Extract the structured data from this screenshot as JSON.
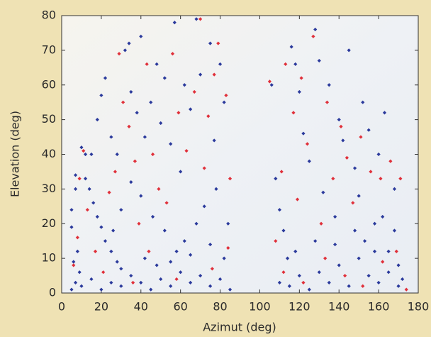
{
  "chart_data": {
    "type": "scatter",
    "xlabel": "Azimut (deg)",
    "ylabel": "Elevation (deg)",
    "xlim": [
      0,
      180
    ],
    "xticks": [
      0,
      20,
      40,
      60,
      80,
      100,
      120,
      140,
      160,
      180
    ],
    "ylim": [
      0,
      80
    ],
    "yticks": [
      0,
      10,
      20,
      30,
      40,
      50,
      60,
      70,
      80
    ],
    "series": [
      {
        "color": "#2b3a9c",
        "x": [
          5,
          7,
          9,
          6,
          8,
          5,
          5,
          7,
          7,
          10,
          12,
          15,
          12,
          14,
          16,
          18,
          20,
          22,
          25,
          28,
          30,
          10,
          15,
          20,
          25,
          30,
          35,
          40,
          45,
          50,
          55,
          60,
          65,
          70,
          75,
          80,
          85,
          18,
          20,
          22,
          25,
          28,
          32,
          34,
          35,
          38,
          40,
          42,
          45,
          48,
          50,
          52,
          55,
          57,
          60,
          62,
          65,
          68,
          70,
          75,
          77,
          80,
          82,
          78,
          72,
          68,
          62,
          58,
          52,
          46,
          40,
          35,
          30,
          26,
          42,
          48,
          55,
          65,
          75,
          82,
          84,
          106,
          108,
          110,
          112,
          114,
          116,
          118,
          120,
          122,
          125,
          128,
          130,
          132,
          135,
          138,
          140,
          142,
          145,
          148,
          150,
          152,
          155,
          158,
          160,
          163,
          165,
          168,
          170,
          172,
          110,
          115,
          120,
          125,
          130,
          135,
          140,
          145,
          150,
          155,
          160,
          165,
          170,
          118,
          128,
          138,
          148,
          158,
          162,
          168,
          153
        ],
        "values": [
          1,
          3,
          6,
          9,
          12,
          19,
          24,
          30,
          34,
          42,
          40,
          40,
          33,
          30,
          26,
          22,
          19,
          15,
          12,
          9,
          7,
          2,
          4,
          1,
          3,
          2,
          5,
          3,
          1,
          4,
          2,
          6,
          3,
          5,
          2,
          4,
          1,
          50,
          57,
          62,
          45,
          40,
          70,
          72,
          58,
          52,
          74,
          45,
          55,
          66,
          49,
          62,
          43,
          78,
          35,
          60,
          53,
          79,
          63,
          72,
          44,
          66,
          55,
          30,
          25,
          20,
          15,
          12,
          18,
          22,
          28,
          32,
          24,
          18,
          10,
          8,
          9,
          11,
          14,
          10,
          20,
          60,
          33,
          24,
          18,
          10,
          71,
          66,
          58,
          46,
          38,
          76,
          67,
          29,
          60,
          22,
          50,
          44,
          70,
          36,
          28,
          55,
          47,
          20,
          40,
          52,
          12,
          30,
          8,
          4,
          3,
          2,
          5,
          1,
          6,
          3,
          8,
          2,
          10,
          5,
          3,
          6,
          2,
          12,
          15,
          14,
          18,
          12,
          22,
          18,
          15
        ]
      },
      {
        "color": "#e0303a",
        "x": [
          6,
          8,
          9,
          11,
          13,
          17,
          21,
          24,
          27,
          29,
          31,
          34,
          37,
          39,
          43,
          46,
          49,
          53,
          56,
          59,
          63,
          67,
          70,
          72,
          74,
          77,
          79,
          83,
          85,
          44,
          36,
          58,
          76,
          84,
          105,
          108,
          111,
          113,
          117,
          119,
          121,
          124,
          127,
          131,
          134,
          137,
          141,
          144,
          147,
          151,
          156,
          161,
          166,
          171,
          112,
          122,
          133,
          143,
          152,
          162,
          169,
          174
        ],
        "values": [
          8,
          16,
          33,
          41,
          24,
          12,
          6,
          29,
          35,
          69,
          55,
          48,
          38,
          20,
          66,
          40,
          30,
          26,
          69,
          52,
          41,
          58,
          79,
          36,
          51,
          63,
          72,
          57,
          33,
          12,
          3,
          4,
          7,
          13,
          61,
          15,
          35,
          66,
          52,
          27,
          62,
          43,
          74,
          20,
          55,
          33,
          48,
          39,
          26,
          45,
          35,
          33,
          38,
          33,
          6,
          3,
          10,
          5,
          2,
          9,
          12,
          1
        ]
      }
    ]
  }
}
